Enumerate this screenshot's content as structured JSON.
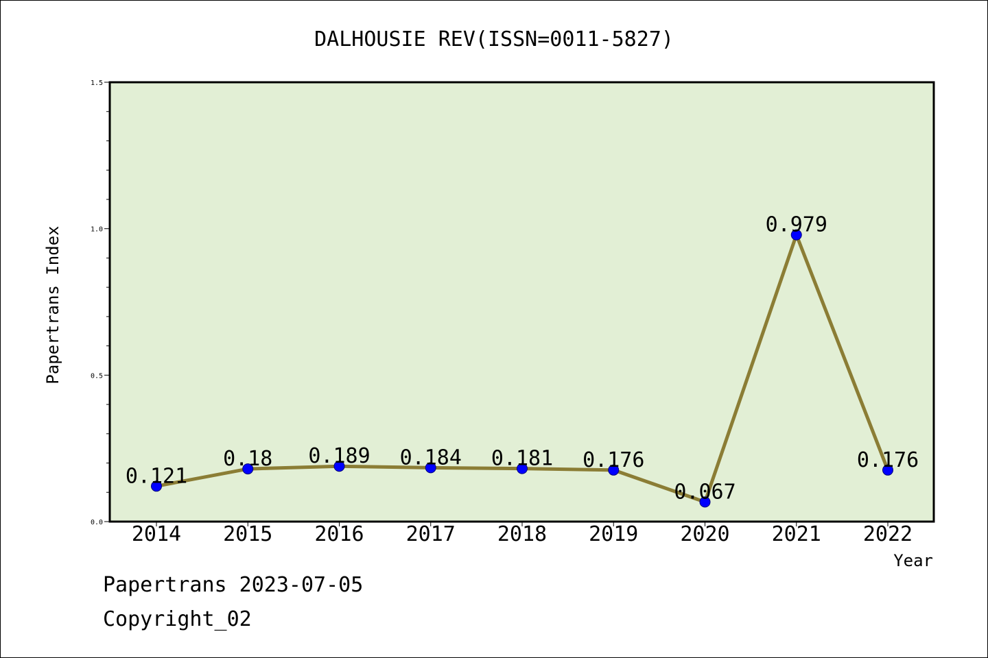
{
  "chart_data": {
    "type": "line",
    "title": "DALHOUSIE REV(ISSN=0011-5827)",
    "xlabel": "Year",
    "ylabel": "Papertrans Index",
    "categories": [
      "2014",
      "2015",
      "2016",
      "2017",
      "2018",
      "2019",
      "2020",
      "2021",
      "2022"
    ],
    "series": [
      {
        "values": [
          0.121,
          0.18,
          0.189,
          0.184,
          0.181,
          0.176,
          0.067,
          0.979,
          0.176
        ],
        "labels": [
          "0.121",
          "0.18",
          "0.189",
          "0.184",
          "0.181",
          "0.176",
          "0.067",
          "0.979",
          "0.176"
        ]
      }
    ],
    "ylim": [
      0,
      1.5
    ],
    "yticks": [
      "0.0",
      "0.5",
      "1.0",
      "1.5"
    ],
    "grid": false,
    "colors": {
      "plot_background": "#e2efd5",
      "line": "#8b7d35",
      "marker": "#0000ff"
    }
  },
  "footer": {
    "date_line": "Papertrans 2023-07-05",
    "copyright": "Copyright_02"
  }
}
